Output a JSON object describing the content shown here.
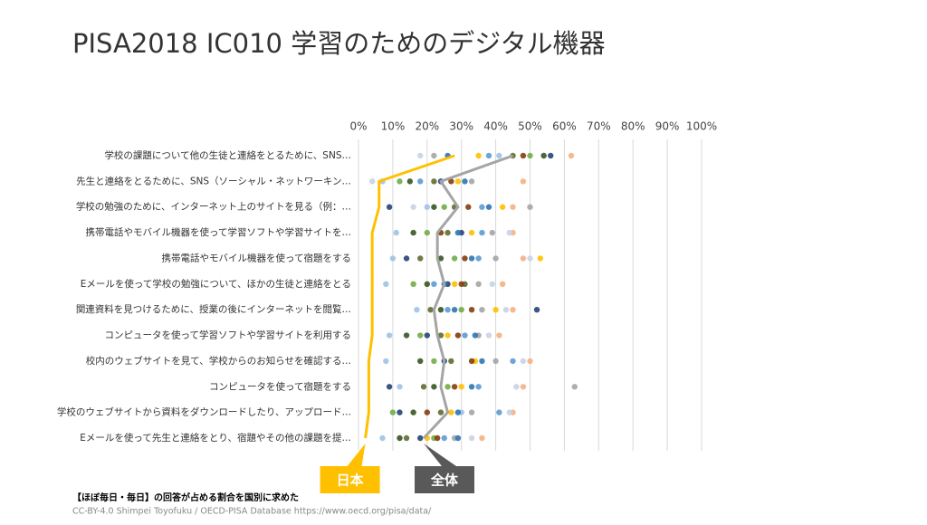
{
  "chart_data": {
    "type": "dot",
    "title": "PISA2018 IC010 学習のためのデジタル機器",
    "note": "【ほぼ毎日・毎日】の回答が占める割合を国別に求めた",
    "source": "CC-BY-4.0 Shimpei Toyofuku  / OECD-PISA Database https://www.oecd.org/pisa/data/",
    "categories": [
      "学校の課題について他の生徒と連絡をとるために、SNS…",
      "先生と連絡をとるために、SNS（ソーシャル・ネットワーキン…",
      "学校の勉強のために、インターネット上のサイトを見る（例：…",
      "携帯電話やモバイル機器を使って学習ソフトや学習サイトを…",
      "携帯電話やモバイル機器を使って宿題をする",
      "Eメールを使って学校の勉強について、ほかの生徒と連絡をとる",
      "関連資料を見つけるために、授業の後にインターネットを閲覧…",
      "コンピュータを使って学習ソフトや学習サイトを利用する",
      "校内のウェブサイトを見て、学校からのお知らせを確認する…",
      "コンピュータを使って宿題をする",
      "学校のウェブサイトから資料をダウンロードしたり、アップロード…",
      "Eメールを使って先生と連絡をとり、宿題やその他の課題を提…"
    ],
    "xlim": [
      0,
      100
    ],
    "xticks": [
      {
        "value": 0,
        "label": "0%"
      },
      {
        "value": 10,
        "label": "10%"
      },
      {
        "value": 20,
        "label": "20%"
      },
      {
        "value": 30,
        "label": "30%"
      },
      {
        "value": 40,
        "label": "40%"
      },
      {
        "value": 50,
        "label": "50%"
      },
      {
        "value": 60,
        "label": "60%"
      },
      {
        "value": 70,
        "label": "70%"
      },
      {
        "value": 80,
        "label": "80%"
      },
      {
        "value": 90,
        "label": "90%"
      },
      {
        "value": 100,
        "label": "100%"
      }
    ],
    "grid": true,
    "series": [
      {
        "color": "#264478",
        "values": [
          56,
          24,
          9,
          30,
          14,
          26,
          52,
          20,
          25,
          9,
          12,
          18
        ]
      },
      {
        "color": "#70ad47",
        "values": [
          50,
          12,
          25,
          20,
          28,
          16,
          30,
          18,
          22,
          26,
          10,
          22
        ]
      },
      {
        "color": "#f4b183",
        "values": [
          62,
          48,
          45,
          45,
          48,
          42,
          45,
          41,
          50,
          48,
          45,
          36
        ]
      },
      {
        "color": "#9dc3e6",
        "values": [
          41,
          7,
          20,
          11,
          10,
          8,
          17,
          9,
          8,
          12,
          30,
          7
        ]
      },
      {
        "color": "#636b2f",
        "values": [
          45,
          22,
          28,
          26,
          18,
          31,
          21,
          24,
          27,
          19,
          24,
          14
        ]
      },
      {
        "color": "#a5a5a5",
        "values": [
          22,
          33,
          50,
          39,
          40,
          35,
          36,
          35,
          40,
          63,
          33,
          28
        ]
      },
      {
        "color": "#ffc000",
        "values": [
          35,
          29,
          42,
          33,
          53,
          28,
          40,
          26,
          34,
          30,
          27,
          20
        ]
      },
      {
        "color": "#5b9bd5",
        "values": [
          38,
          18,
          36,
          36,
          35,
          22,
          26,
          31,
          45,
          35,
          41,
          25
        ]
      },
      {
        "color": "#843c0c",
        "values": [
          48,
          27,
          32,
          24,
          31,
          30,
          33,
          29,
          33,
          28,
          20,
          23
        ]
      },
      {
        "color": "#375623",
        "values": [
          54,
          15,
          22,
          16,
          24,
          20,
          24,
          14,
          18,
          22,
          16,
          12
        ]
      },
      {
        "color": "#c9d3e3",
        "values": [
          18,
          4,
          16,
          44,
          50,
          39,
          43,
          38,
          48,
          46,
          44,
          33
        ]
      },
      {
        "color": "#2e75b6",
        "values": [
          26,
          31,
          38,
          29,
          33,
          25,
          28,
          34,
          36,
          33,
          29,
          29
        ]
      },
      {
        "name": "全体",
        "kind": "line",
        "color": "#a5a5a5",
        "label_color": "#595959",
        "values": [
          45,
          24,
          29,
          23,
          23,
          25,
          22,
          23,
          25,
          24,
          26,
          19
        ]
      },
      {
        "name": "日本",
        "kind": "line",
        "color": "#ffc000",
        "label_color": "#ffc000",
        "values": [
          28,
          6,
          6,
          4,
          4,
          4,
          4,
          4,
          3,
          3,
          3,
          2
        ]
      }
    ]
  }
}
